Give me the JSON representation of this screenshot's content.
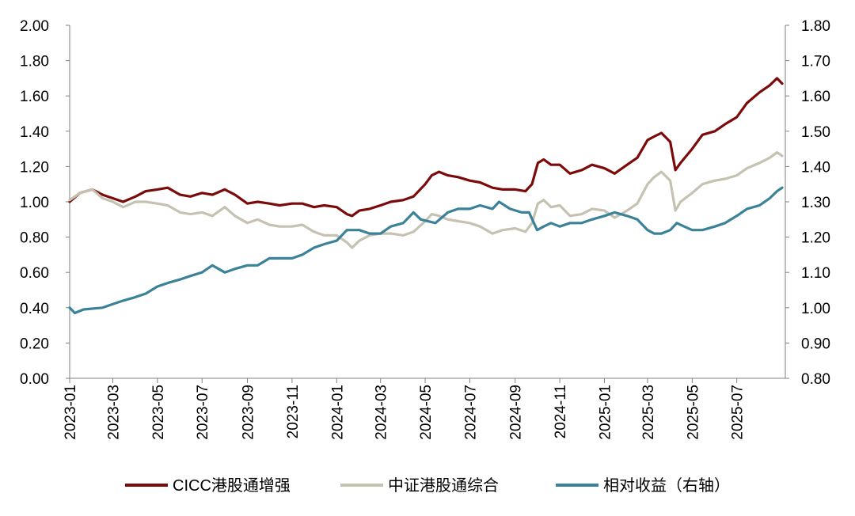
{
  "chart_data": {
    "type": "line",
    "title": "",
    "xlabel": "",
    "ylabel": "",
    "x_ticks": [
      "2023-01",
      "2023-03",
      "2023-05",
      "2023-07",
      "2023-09",
      "2023-11",
      "2024-01",
      "2024-03",
      "2024-05",
      "2024-07",
      "2024-09",
      "2024-11",
      "2025-01",
      "2025-03",
      "2025-05",
      "2025-07"
    ],
    "y_left": {
      "min": 0.0,
      "max": 2.0,
      "step": 0.2,
      "ticks": [
        "0.00",
        "0.20",
        "0.40",
        "0.60",
        "0.80",
        "1.00",
        "1.20",
        "1.40",
        "1.60",
        "1.80",
        "2.00"
      ]
    },
    "y_right": {
      "min": 0.8,
      "max": 1.8,
      "step": 0.1,
      "ticks": [
        "0.80",
        "0.90",
        "1.00",
        "1.10",
        "1.20",
        "1.30",
        "1.40",
        "1.50",
        "1.60",
        "1.70",
        "1.80"
      ]
    },
    "grid": false,
    "legend_position": "bottom",
    "series": [
      {
        "name": "CICC港股通增强",
        "axis": "left",
        "color": "#7b0a0a",
        "points": [
          [
            "2023-01-01",
            1.0
          ],
          [
            "2023-01-15",
            1.05
          ],
          [
            "2023-02-01",
            1.07
          ],
          [
            "2023-02-15",
            1.04
          ],
          [
            "2023-03-01",
            1.02
          ],
          [
            "2023-03-15",
            1.0
          ],
          [
            "2023-04-01",
            1.03
          ],
          [
            "2023-04-15",
            1.06
          ],
          [
            "2023-05-01",
            1.07
          ],
          [
            "2023-05-15",
            1.08
          ],
          [
            "2023-06-01",
            1.04
          ],
          [
            "2023-06-15",
            1.03
          ],
          [
            "2023-07-01",
            1.05
          ],
          [
            "2023-07-15",
            1.04
          ],
          [
            "2023-08-01",
            1.07
          ],
          [
            "2023-08-15",
            1.04
          ],
          [
            "2023-09-01",
            0.99
          ],
          [
            "2023-09-15",
            1.0
          ],
          [
            "2023-10-01",
            0.99
          ],
          [
            "2023-10-15",
            0.98
          ],
          [
            "2023-11-01",
            0.99
          ],
          [
            "2023-11-15",
            0.99
          ],
          [
            "2023-12-01",
            0.97
          ],
          [
            "2023-12-15",
            0.98
          ],
          [
            "2024-01-01",
            0.97
          ],
          [
            "2024-01-15",
            0.93
          ],
          [
            "2024-01-22",
            0.92
          ],
          [
            "2024-02-01",
            0.95
          ],
          [
            "2024-02-15",
            0.96
          ],
          [
            "2024-03-01",
            0.98
          ],
          [
            "2024-03-15",
            1.0
          ],
          [
            "2024-04-01",
            1.01
          ],
          [
            "2024-04-15",
            1.03
          ],
          [
            "2024-05-01",
            1.1
          ],
          [
            "2024-05-10",
            1.15
          ],
          [
            "2024-05-20",
            1.17
          ],
          [
            "2024-06-01",
            1.15
          ],
          [
            "2024-06-15",
            1.14
          ],
          [
            "2024-07-01",
            1.12
          ],
          [
            "2024-07-15",
            1.11
          ],
          [
            "2024-08-01",
            1.08
          ],
          [
            "2024-08-15",
            1.07
          ],
          [
            "2024-09-01",
            1.07
          ],
          [
            "2024-09-15",
            1.06
          ],
          [
            "2024-09-24",
            1.1
          ],
          [
            "2024-10-02",
            1.22
          ],
          [
            "2024-10-10",
            1.24
          ],
          [
            "2024-10-20",
            1.21
          ],
          [
            "2024-11-01",
            1.21
          ],
          [
            "2024-11-15",
            1.16
          ],
          [
            "2024-12-01",
            1.18
          ],
          [
            "2024-12-15",
            1.21
          ],
          [
            "2025-01-01",
            1.19
          ],
          [
            "2025-01-15",
            1.16
          ],
          [
            "2025-02-01",
            1.21
          ],
          [
            "2025-02-15",
            1.25
          ],
          [
            "2025-03-01",
            1.35
          ],
          [
            "2025-03-10",
            1.37
          ],
          [
            "2025-03-20",
            1.39
          ],
          [
            "2025-04-01",
            1.34
          ],
          [
            "2025-04-08",
            1.18
          ],
          [
            "2025-04-15",
            1.22
          ],
          [
            "2025-05-01",
            1.3
          ],
          [
            "2025-05-15",
            1.38
          ],
          [
            "2025-06-01",
            1.4
          ],
          [
            "2025-06-15",
            1.44
          ],
          [
            "2025-07-01",
            1.48
          ],
          [
            "2025-07-15",
            1.56
          ],
          [
            "2025-08-01",
            1.62
          ],
          [
            "2025-08-15",
            1.66
          ],
          [
            "2025-08-25",
            1.7
          ],
          [
            "2025-09-01",
            1.67
          ]
        ]
      },
      {
        "name": "中证港股通综合",
        "axis": "left",
        "color": "#c5c2b2",
        "points": [
          [
            "2023-01-01",
            1.01
          ],
          [
            "2023-01-15",
            1.05
          ],
          [
            "2023-02-01",
            1.07
          ],
          [
            "2023-02-15",
            1.02
          ],
          [
            "2023-03-01",
            1.0
          ],
          [
            "2023-03-15",
            0.97
          ],
          [
            "2023-04-01",
            1.0
          ],
          [
            "2023-04-15",
            1.0
          ],
          [
            "2023-05-01",
            0.99
          ],
          [
            "2023-05-15",
            0.98
          ],
          [
            "2023-06-01",
            0.94
          ],
          [
            "2023-06-15",
            0.93
          ],
          [
            "2023-07-01",
            0.94
          ],
          [
            "2023-07-15",
            0.92
          ],
          [
            "2023-08-01",
            0.97
          ],
          [
            "2023-08-15",
            0.92
          ],
          [
            "2023-09-01",
            0.88
          ],
          [
            "2023-09-15",
            0.9
          ],
          [
            "2023-10-01",
            0.87
          ],
          [
            "2023-10-15",
            0.86
          ],
          [
            "2023-11-01",
            0.86
          ],
          [
            "2023-11-15",
            0.87
          ],
          [
            "2023-12-01",
            0.83
          ],
          [
            "2023-12-15",
            0.81
          ],
          [
            "2024-01-01",
            0.81
          ],
          [
            "2024-01-15",
            0.77
          ],
          [
            "2024-01-22",
            0.74
          ],
          [
            "2024-02-01",
            0.78
          ],
          [
            "2024-02-15",
            0.81
          ],
          [
            "2024-03-01",
            0.82
          ],
          [
            "2024-03-15",
            0.82
          ],
          [
            "2024-04-01",
            0.81
          ],
          [
            "2024-04-15",
            0.83
          ],
          [
            "2024-05-01",
            0.89
          ],
          [
            "2024-05-10",
            0.93
          ],
          [
            "2024-05-20",
            0.92
          ],
          [
            "2024-06-01",
            0.9
          ],
          [
            "2024-06-15",
            0.89
          ],
          [
            "2024-07-01",
            0.88
          ],
          [
            "2024-07-15",
            0.86
          ],
          [
            "2024-08-01",
            0.82
          ],
          [
            "2024-08-15",
            0.84
          ],
          [
            "2024-09-01",
            0.85
          ],
          [
            "2024-09-15",
            0.83
          ],
          [
            "2024-09-24",
            0.88
          ],
          [
            "2024-10-02",
            0.99
          ],
          [
            "2024-10-10",
            1.01
          ],
          [
            "2024-10-20",
            0.97
          ],
          [
            "2024-11-01",
            0.98
          ],
          [
            "2024-11-15",
            0.92
          ],
          [
            "2024-12-01",
            0.93
          ],
          [
            "2024-12-15",
            0.96
          ],
          [
            "2025-01-01",
            0.95
          ],
          [
            "2025-01-15",
            0.91
          ],
          [
            "2025-02-01",
            0.95
          ],
          [
            "2025-02-15",
            0.99
          ],
          [
            "2025-03-01",
            1.1
          ],
          [
            "2025-03-10",
            1.14
          ],
          [
            "2025-03-20",
            1.17
          ],
          [
            "2025-04-01",
            1.12
          ],
          [
            "2025-04-08",
            0.95
          ],
          [
            "2025-04-15",
            1.0
          ],
          [
            "2025-05-01",
            1.05
          ],
          [
            "2025-05-15",
            1.1
          ],
          [
            "2025-06-01",
            1.12
          ],
          [
            "2025-06-15",
            1.13
          ],
          [
            "2025-07-01",
            1.15
          ],
          [
            "2025-07-15",
            1.19
          ],
          [
            "2025-08-01",
            1.22
          ],
          [
            "2025-08-15",
            1.25
          ],
          [
            "2025-08-25",
            1.28
          ],
          [
            "2025-09-01",
            1.26
          ]
        ]
      },
      {
        "name": "相对收益（右轴）",
        "axis": "right",
        "color": "#3b8299",
        "points": [
          [
            "2023-01-01",
            1.0
          ],
          [
            "2023-01-08",
            0.985
          ],
          [
            "2023-01-20",
            0.995
          ],
          [
            "2023-02-15",
            1.0
          ],
          [
            "2023-03-01",
            1.01
          ],
          [
            "2023-03-15",
            1.02
          ],
          [
            "2023-04-01",
            1.03
          ],
          [
            "2023-04-15",
            1.04
          ],
          [
            "2023-05-01",
            1.06
          ],
          [
            "2023-05-15",
            1.07
          ],
          [
            "2023-06-01",
            1.08
          ],
          [
            "2023-06-15",
            1.09
          ],
          [
            "2023-07-01",
            1.1
          ],
          [
            "2023-07-15",
            1.12
          ],
          [
            "2023-08-01",
            1.1
          ],
          [
            "2023-08-15",
            1.11
          ],
          [
            "2023-09-01",
            1.12
          ],
          [
            "2023-09-15",
            1.12
          ],
          [
            "2023-10-01",
            1.14
          ],
          [
            "2023-10-15",
            1.14
          ],
          [
            "2023-11-01",
            1.14
          ],
          [
            "2023-11-15",
            1.15
          ],
          [
            "2023-12-01",
            1.17
          ],
          [
            "2023-12-15",
            1.18
          ],
          [
            "2024-01-01",
            1.19
          ],
          [
            "2024-01-15",
            1.22
          ],
          [
            "2024-02-01",
            1.22
          ],
          [
            "2024-02-15",
            1.21
          ],
          [
            "2024-03-01",
            1.21
          ],
          [
            "2024-03-15",
            1.23
          ],
          [
            "2024-04-01",
            1.24
          ],
          [
            "2024-04-15",
            1.27
          ],
          [
            "2024-04-25",
            1.25
          ],
          [
            "2024-05-15",
            1.24
          ],
          [
            "2024-06-01",
            1.27
          ],
          [
            "2024-06-15",
            1.28
          ],
          [
            "2024-07-01",
            1.28
          ],
          [
            "2024-07-15",
            1.29
          ],
          [
            "2024-08-01",
            1.28
          ],
          [
            "2024-08-10",
            1.3
          ],
          [
            "2024-08-25",
            1.28
          ],
          [
            "2024-09-10",
            1.27
          ],
          [
            "2024-09-20",
            1.27
          ],
          [
            "2024-10-01",
            1.22
          ],
          [
            "2024-10-10",
            1.23
          ],
          [
            "2024-10-20",
            1.24
          ],
          [
            "2024-11-01",
            1.23
          ],
          [
            "2024-11-15",
            1.24
          ],
          [
            "2024-12-01",
            1.24
          ],
          [
            "2024-12-15",
            1.25
          ],
          [
            "2025-01-01",
            1.26
          ],
          [
            "2025-01-15",
            1.27
          ],
          [
            "2025-02-01",
            1.26
          ],
          [
            "2025-02-15",
            1.25
          ],
          [
            "2025-03-01",
            1.22
          ],
          [
            "2025-03-10",
            1.21
          ],
          [
            "2025-03-20",
            1.21
          ],
          [
            "2025-04-01",
            1.22
          ],
          [
            "2025-04-10",
            1.24
          ],
          [
            "2025-04-20",
            1.23
          ],
          [
            "2025-05-01",
            1.22
          ],
          [
            "2025-05-15",
            1.22
          ],
          [
            "2025-06-01",
            1.23
          ],
          [
            "2025-06-15",
            1.24
          ],
          [
            "2025-07-01",
            1.26
          ],
          [
            "2025-07-15",
            1.28
          ],
          [
            "2025-08-01",
            1.29
          ],
          [
            "2025-08-15",
            1.31
          ],
          [
            "2025-08-25",
            1.33
          ],
          [
            "2025-09-01",
            1.34
          ]
        ]
      }
    ]
  }
}
